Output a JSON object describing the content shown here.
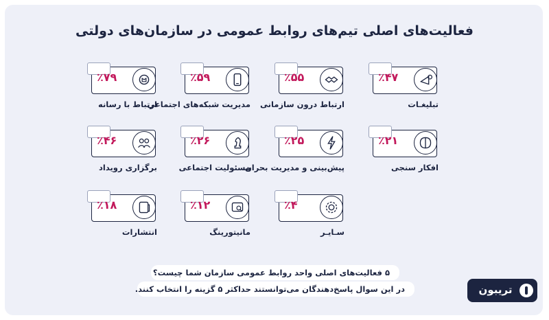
{
  "header": {
    "title": "فعالیت‌های اصلی تیم‌های روابط عمومی در سازمان‌های دولتی"
  },
  "chart_data": {
    "type": "table",
    "items": [
      {
        "label": "ارتباط با رسانه",
        "value": "٪۷۹",
        "icon": "media-icon"
      },
      {
        "label": "مدیریت شبکه‌های اجتماعی",
        "value": "٪۵۹",
        "icon": "phone-icon"
      },
      {
        "label": "ارتباط درون سازمانی",
        "value": "٪۵۵",
        "icon": "handshake-icon"
      },
      {
        "label": "تبلیغـات",
        "value": "٪۴۷",
        "icon": "megaphone-icon"
      },
      {
        "label": "برگزاری رویداد",
        "value": "٪۴۶",
        "icon": "people-icon"
      },
      {
        "label": "مسئولیت اجتماعی",
        "value": "٪۲۶",
        "icon": "chess-icon"
      },
      {
        "label": "پیش‌بینی و مدیریت بحران",
        "value": "٪۲۵",
        "icon": "lightning-icon"
      },
      {
        "label": "افکار سنجی",
        "value": "٪۲۱",
        "icon": "brain-icon"
      },
      {
        "label": "انتشارات",
        "value": "٪۱۸",
        "icon": "document-icon"
      },
      {
        "label": "مانیتورینگ",
        "value": "٪۱۲",
        "icon": "monitor-icon"
      },
      {
        "label": "سـایـر",
        "value": "٪۴",
        "icon": "gear-icon"
      }
    ],
    "values_percent": [
      79,
      59,
      55,
      47,
      46,
      26,
      25,
      21,
      18,
      12,
      4
    ]
  },
  "footer": {
    "question": "۵ فعالیت‌های اصلی واحد روابط عمومی سازمان شما چیست؟",
    "note": "در این سوال پاسخ‌دهندگان می‌توانستند حداکثر ۵ گزینه را انتخاب کنند.",
    "logo_text": "تریبون"
  },
  "colors": {
    "accent": "#c2185b",
    "ink": "#1c2440",
    "background": "#eef0f8"
  }
}
